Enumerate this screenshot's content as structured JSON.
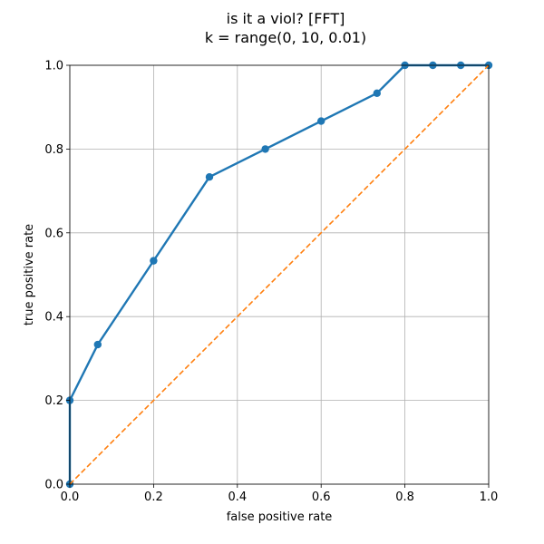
{
  "chart_data": {
    "type": "line",
    "title_line1": "is it a viol? [FFT]",
    "title_line2": "k = range(0, 10, 0.01)",
    "xlabel": "false positive rate",
    "ylabel": "true positive rate",
    "xlim": [
      0,
      1
    ],
    "ylim": [
      0,
      1
    ],
    "grid": true,
    "xticks": [
      "0.0",
      "0.2",
      "0.4",
      "0.6",
      "0.8",
      "1.0"
    ],
    "yticks": [
      "0.0",
      "0.2",
      "0.4",
      "0.6",
      "0.8",
      "1.0"
    ],
    "series": [
      {
        "style": "solid line with circle markers",
        "color": "#1f77b4",
        "x": [
          0.0,
          0.0,
          0.0667,
          0.2,
          0.3333,
          0.4667,
          0.6,
          0.7333,
          0.8,
          0.8667,
          0.9333,
          1.0
        ],
        "y": [
          0.0,
          0.2,
          0.3333,
          0.5333,
          0.7333,
          0.8,
          0.8667,
          0.9333,
          1.0,
          1.0,
          1.0,
          1.0
        ]
      },
      {
        "style": "dashed line",
        "color": "#ff7f0e",
        "x": [
          0,
          1
        ],
        "y": [
          0,
          1
        ]
      }
    ]
  }
}
